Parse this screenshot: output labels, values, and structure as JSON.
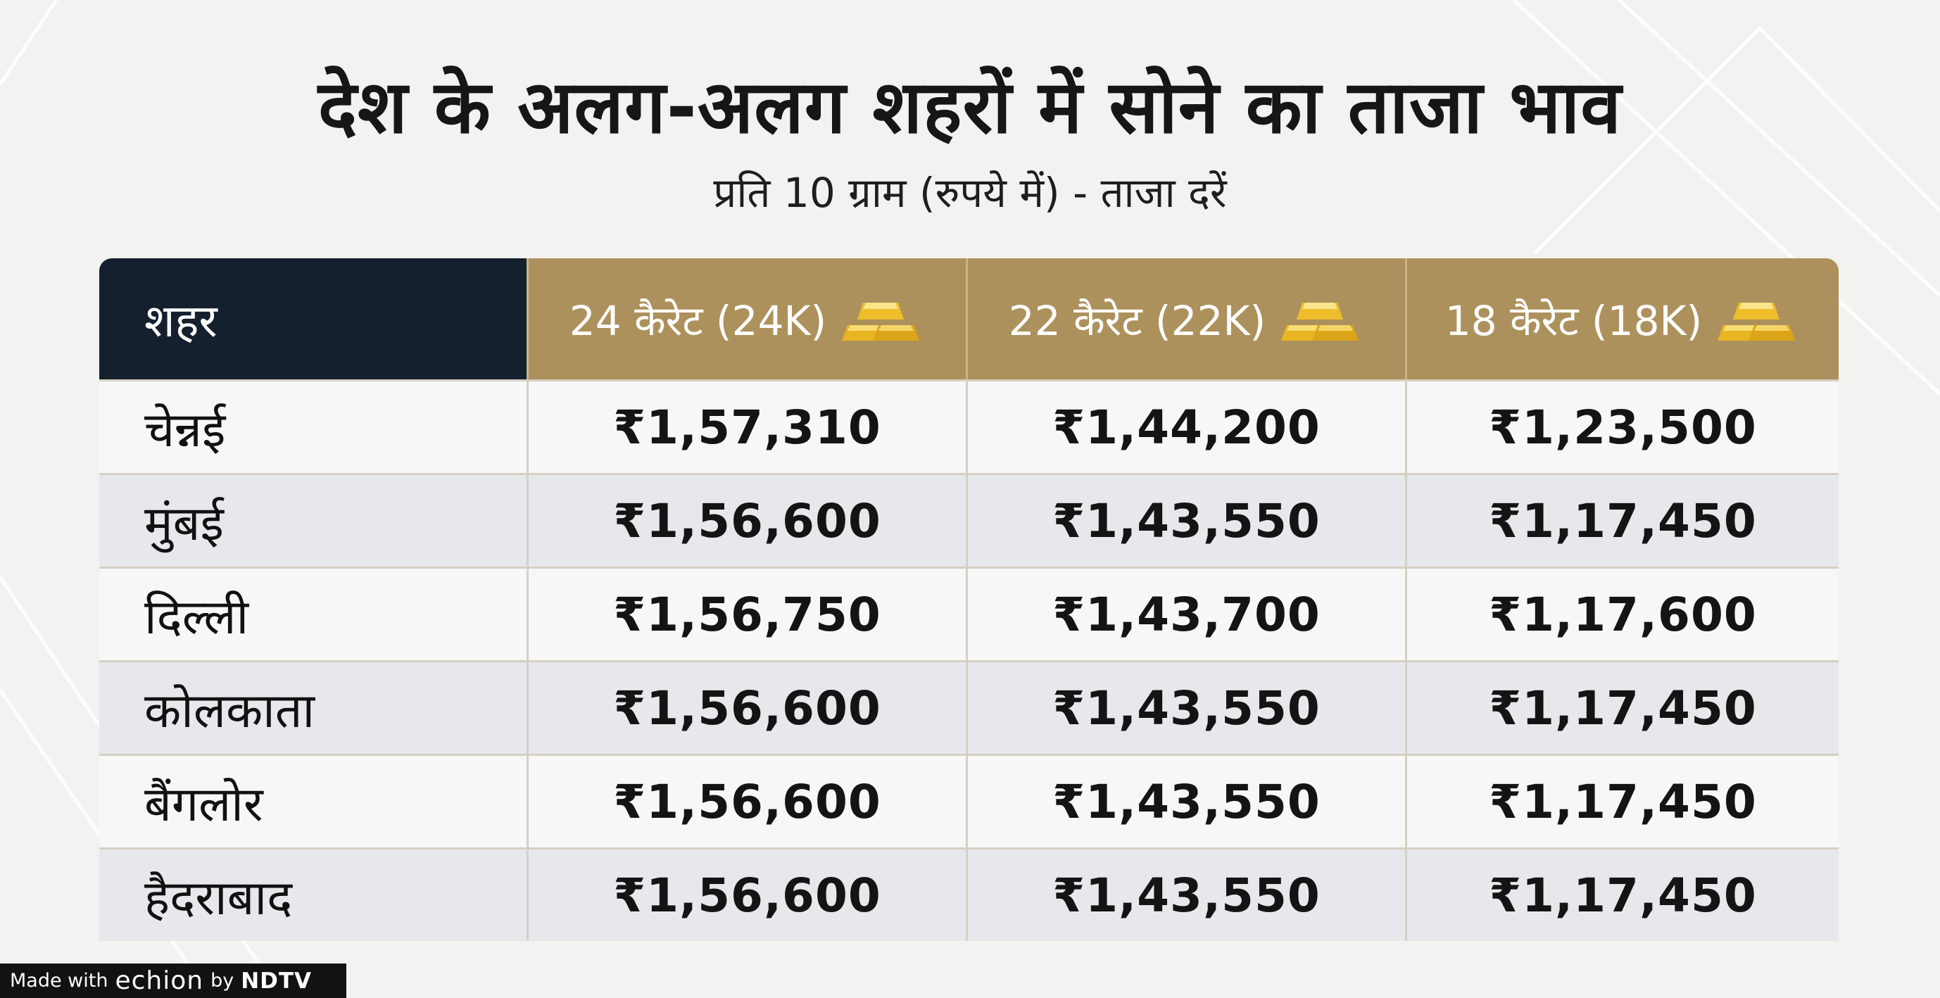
{
  "header": {
    "title": "देश के अलग-अलग शहरों में सोने का ताजा भाव",
    "subtitle": "प्रति 10 ग्राम (रुपये में) - ताजा दरें"
  },
  "table": {
    "headers": [
      "शहर",
      "24 कैरेट (24K)",
      "22 कैरेट (22K)",
      "18 कैरेट (18K)"
    ],
    "header_icon": "gold-bars-icon",
    "rows": [
      {
        "city": "चेन्नई",
        "k24": "₹1,57,310",
        "k22": "₹1,44,200",
        "k18": "₹1,23,500"
      },
      {
        "city": "मुंबई",
        "k24": "₹1,56,600",
        "k22": "₹1,43,550",
        "k18": "₹1,17,450"
      },
      {
        "city": "दिल्ली",
        "k24": "₹1,56,750",
        "k22": "₹1,43,700",
        "k18": "₹1,17,600"
      },
      {
        "city": "कोलकाता",
        "k24": "₹1,56,600",
        "k22": "₹1,43,550",
        "k18": "₹1,17,450"
      },
      {
        "city": "बैंगलोर",
        "k24": "₹1,56,600",
        "k22": "₹1,43,550",
        "k18": "₹1,17,450"
      },
      {
        "city": "हैदराबाद",
        "k24": "₹1,56,600",
        "k22": "₹1,43,550",
        "k18": "₹1,17,450"
      }
    ]
  },
  "footer": {
    "made_with": "Made with",
    "brand": "echion",
    "by": "by",
    "publisher": "NDTV"
  },
  "colors": {
    "background": "#f2f2f0",
    "header_dark": "#15202e",
    "header_gold": "#ad915c",
    "row_light": "#f7f7f8",
    "row_alt": "#e6e8ec"
  }
}
